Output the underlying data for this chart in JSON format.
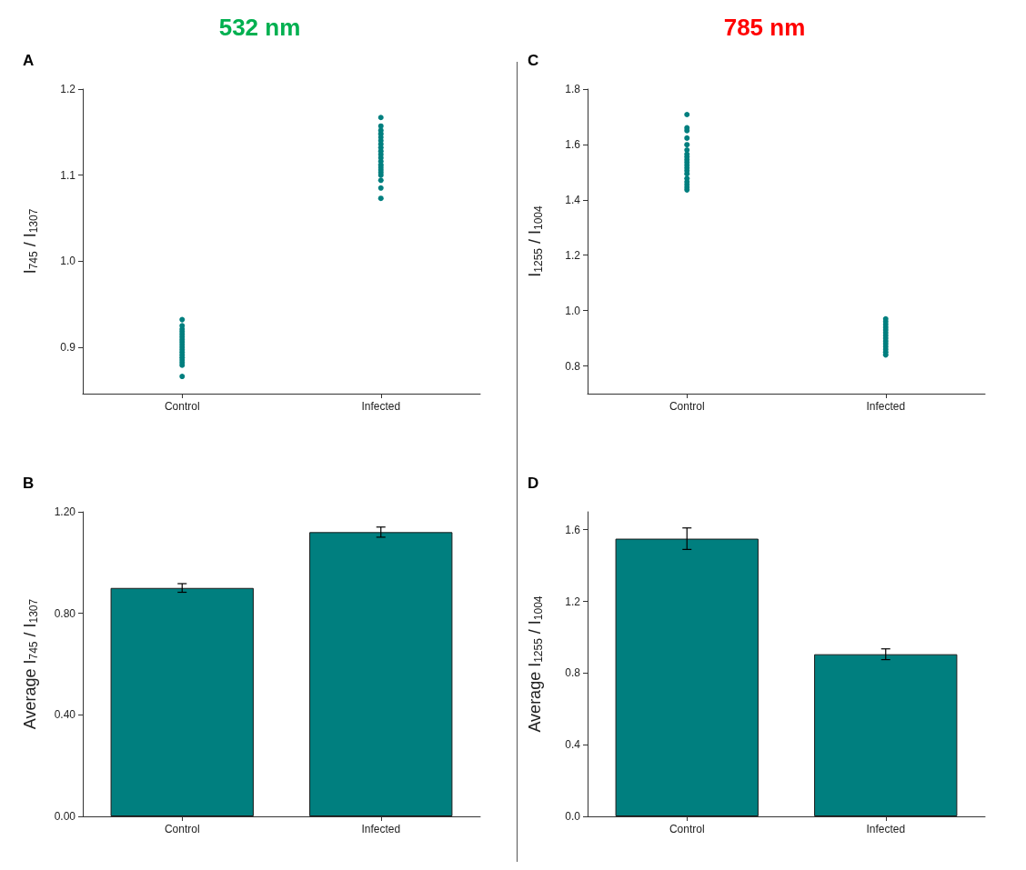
{
  "chart_data": [
    {
      "type": "scatter",
      "title": "532 nm",
      "annotations": [
        "A"
      ],
      "ylabel": "I$_{745}$ / I$_{1307}$",
      "categories": [
        "Control",
        "Infected"
      ],
      "ylim": [
        0.846,
        1.2
      ],
      "yticks": [
        0.9,
        {
          "value": 1,
          "label": "1.0"
        },
        1.1,
        1.2
      ],
      "grid": false,
      "marker": "circle",
      "series": [
        {
          "color": "#007f7f",
          "x": [
            "Control",
            "Control",
            "Control",
            "Control",
            "Control",
            "Control",
            "Control",
            "Control",
            "Control",
            "Control",
            "Control",
            "Control",
            "Control",
            "Control",
            "Control",
            "Control",
            "Control",
            "Control",
            "Infected",
            "Infected",
            "Infected",
            "Infected",
            "Infected",
            "Infected",
            "Infected",
            "Infected",
            "Infected",
            "Infected",
            "Infected",
            "Infected",
            "Infected",
            "Infected",
            "Infected",
            "Infected",
            "Infected",
            "Infected",
            "Infected",
            "Infected"
          ],
          "values": [
            0.866,
            0.879,
            0.882,
            0.885,
            0.888,
            0.891,
            0.894,
            0.897,
            0.9,
            0.903,
            0.906,
            0.909,
            0.912,
            0.915,
            0.918,
            0.921,
            0.925,
            0.932,
            1.073,
            1.085,
            1.094,
            1.1,
            1.103,
            1.106,
            1.109,
            1.112,
            1.116,
            1.12,
            1.124,
            1.128,
            1.132,
            1.136,
            1.14,
            1.144,
            1.148,
            1.152,
            1.157,
            1.167
          ]
        }
      ]
    },
    {
      "type": "scatter",
      "title": "785 nm",
      "annotations": [
        "C"
      ],
      "ylabel": "I$_{1255}$ / I$_{1004}$",
      "categories": [
        "Control",
        "Infected"
      ],
      "ylim": [
        0.7,
        1.8
      ],
      "yticks": [
        0.8,
        {
          "value": 1,
          "label": "1.0"
        },
        1.2,
        1.4,
        1.6,
        1.8
      ],
      "grid": false,
      "marker": "circle",
      "series": [
        {
          "color": "#007f7f",
          "x": [
            "Control",
            "Control",
            "Control",
            "Control",
            "Control",
            "Control",
            "Control",
            "Control",
            "Control",
            "Control",
            "Control",
            "Control",
            "Control",
            "Control",
            "Control",
            "Control",
            "Control",
            "Control",
            "Control",
            "Infected",
            "Infected",
            "Infected",
            "Infected",
            "Infected",
            "Infected",
            "Infected",
            "Infected",
            "Infected",
            "Infected",
            "Infected",
            "Infected",
            "Infected",
            "Infected"
          ],
          "values": [
            1.436,
            1.445,
            1.455,
            1.465,
            1.477,
            1.494,
            1.505,
            1.515,
            1.525,
            1.535,
            1.545,
            1.555,
            1.565,
            1.58,
            1.599,
            1.623,
            1.65,
            1.66,
            1.708,
            0.84,
            0.85,
            0.86,
            0.87,
            0.88,
            0.89,
            0.9,
            0.91,
            0.92,
            0.93,
            0.94,
            0.95,
            0.96,
            0.97
          ]
        }
      ]
    },
    {
      "type": "bar",
      "annotations": [
        "B"
      ],
      "ylabel": "Average I$_{745}$ / I$_{1307}$",
      "categories": [
        "Control",
        "Infected"
      ],
      "ylim": [
        0,
        1.2
      ],
      "yticks": [
        {
          "value": 0,
          "label": "0.00"
        },
        {
          "value": 0.4,
          "label": "0.40"
        },
        {
          "value": 0.8,
          "label": "0.80"
        },
        {
          "value": 1.2,
          "label": "1.20"
        }
      ],
      "grid": false,
      "color": "#007f7f",
      "values": [
        0.9,
        1.12
      ],
      "errors": [
        0.017,
        0.02
      ]
    },
    {
      "type": "bar",
      "annotations": [
        "D"
      ],
      "ylabel": "Average I$_{1255}$ / I$_{1004}$",
      "categories": [
        "Control",
        "Infected"
      ],
      "ylim": [
        0,
        1.7
      ],
      "yticks": [
        {
          "value": 0,
          "label": "0.0"
        },
        0.4,
        0.8,
        1.2,
        1.6
      ],
      "grid": false,
      "color": "#007f7f",
      "values": [
        1.55,
        0.905
      ],
      "errors": [
        0.06,
        0.03
      ]
    }
  ]
}
